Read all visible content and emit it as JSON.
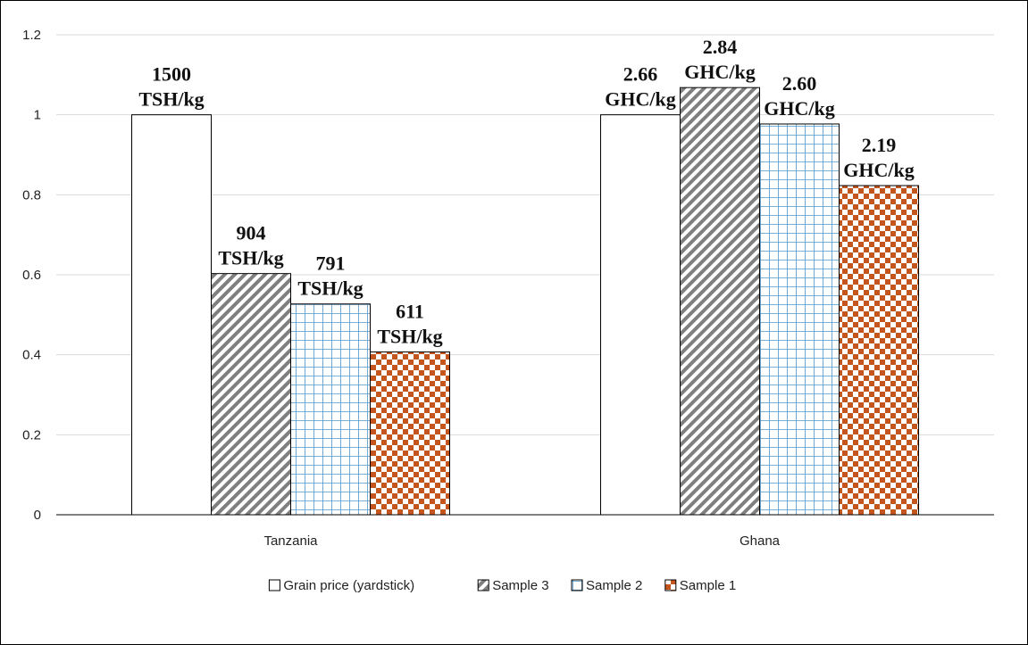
{
  "chart_data": {
    "type": "bar",
    "categories": [
      "Tanzania",
      "Ghana"
    ],
    "ylim": [
      0,
      1.2
    ],
    "yticks": [
      "0",
      "0.2",
      "0.4",
      "0.6",
      "0.8",
      "1",
      "1.2"
    ],
    "ytick_values": [
      0,
      0.2,
      0.4,
      0.6,
      0.8,
      1.0,
      1.2
    ],
    "grid": true,
    "legend_position": "bottom",
    "series": [
      {
        "name": "Grain price (yardstick)",
        "pattern": "solid-white",
        "color": "#ffffff",
        "values": [
          1.0,
          1.0
        ],
        "labels": [
          [
            "1500",
            "TSH/kg"
          ],
          [
            "2.66",
            "GHC/kg"
          ]
        ]
      },
      {
        "name": "Sample 3",
        "pattern": "diagonal-stripes",
        "color": "#7f7f7f",
        "values": [
          0.603,
          1.068
        ],
        "labels": [
          [
            "904",
            "TSH/kg"
          ],
          [
            "2.84",
            "GHC/kg"
          ]
        ]
      },
      {
        "name": "Sample 2",
        "pattern": "grid",
        "color": "#4f95c8",
        "values": [
          0.527,
          0.977
        ],
        "labels": [
          [
            "791",
            "TSH/kg"
          ],
          [
            "2.60",
            "GHC/kg"
          ]
        ]
      },
      {
        "name": "Sample 1",
        "pattern": "checkerboard",
        "color": "#c4561d",
        "values": [
          0.407,
          0.823
        ],
        "labels": [
          [
            "611",
            "TSH/kg"
          ],
          [
            "2.19",
            "GHC/kg"
          ]
        ]
      }
    ]
  }
}
